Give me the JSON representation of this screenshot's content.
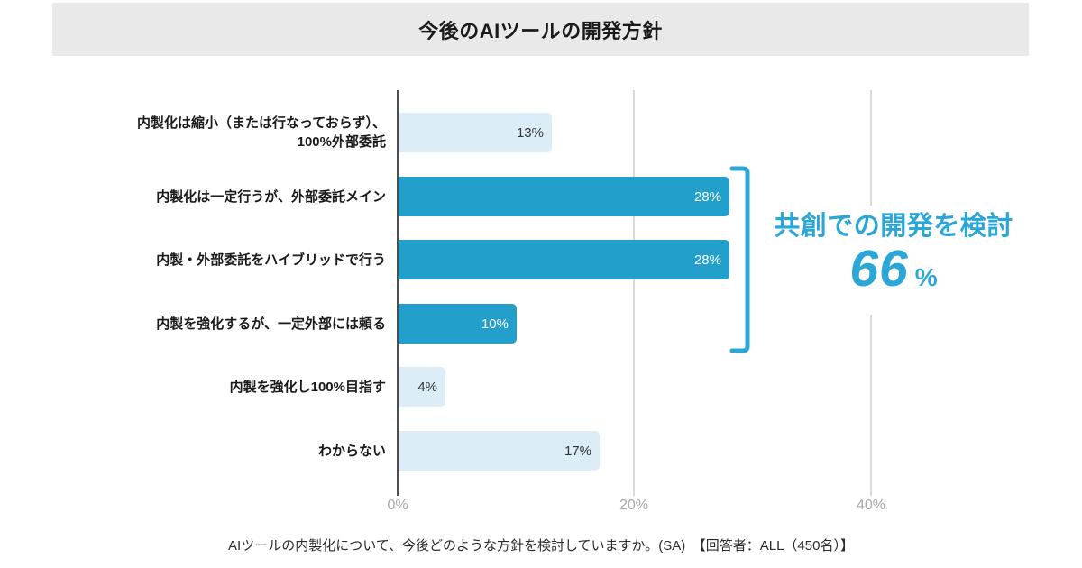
{
  "header": {
    "title": "今後のAIツールの開発方針"
  },
  "chart_data": {
    "type": "bar",
    "orientation": "horizontal",
    "unit": "%",
    "categories": [
      "内製化は縮小（または行なっておらず）、\n100%外部委託",
      "内製化は一定行うが、外部委託メイン",
      "内製・外部委託をハイブリッドで行う",
      "内製を強化するが、一定外部には頼る",
      "内製を強化し100%目指す",
      "わからない"
    ],
    "values": [
      13,
      28,
      28,
      10,
      4,
      17
    ],
    "value_labels": [
      "13%",
      "28%",
      "28%",
      "10%",
      "4%",
      "17%"
    ],
    "emphasized": [
      false,
      true,
      true,
      true,
      false,
      false
    ],
    "x_ticks": [
      "0%",
      "20%",
      "40%"
    ],
    "x_tick_values": [
      0,
      20,
      40
    ],
    "xlim": [
      0,
      45
    ],
    "grid": "vertical-at-20-and-40",
    "annotation": {
      "label": "共創での開発を検討",
      "value": "66",
      "unit": "%",
      "applies_to_categories": [
        "内製化は一定行うが、外部委託メイン",
        "内製・外部委託をハイブリッドで行う",
        "内製を強化するが、一定外部には頼る"
      ]
    }
  },
  "footnote": "AIツールの内製化について、今後どのような方針を検討していますか。(SA)　【回答者：ALL（450名）】",
  "colors": {
    "bar_strong": "#22a0cb",
    "bar_light": "#ddedf7",
    "value_on_strong": "#ffffff",
    "value_on_light": "#333333",
    "accent": "#2aa7d6",
    "banner_bg": "#e9e9e9"
  }
}
